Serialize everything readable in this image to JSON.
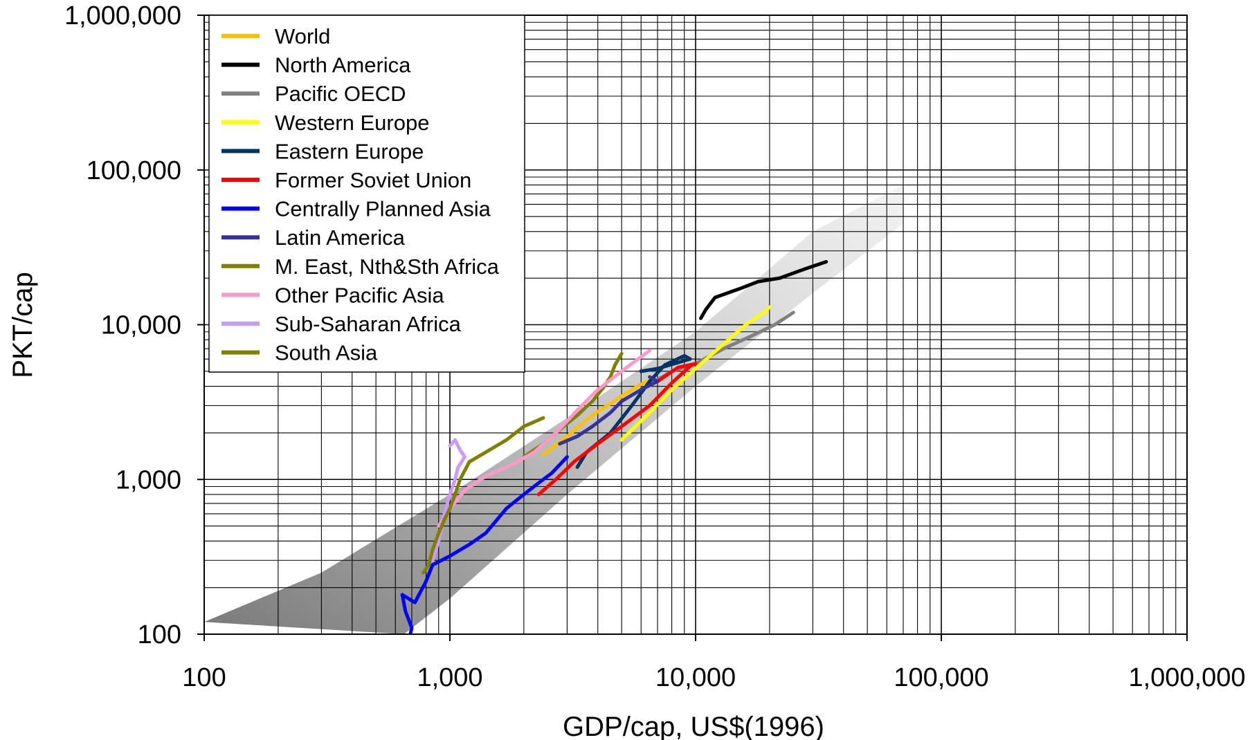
{
  "chart_data": {
    "type": "line",
    "xlabel": "GDP/cap, US$(1996)",
    "ylabel": "PKT/cap",
    "xscale": "log",
    "yscale": "log",
    "xlim": [
      100,
      1000000
    ],
    "ylim": [
      100,
      1000000
    ],
    "grid": true,
    "legend_position": "top-left",
    "xticks": [
      {
        "v": 100,
        "label": "100"
      },
      {
        "v": 1000,
        "label": "1,000"
      },
      {
        "v": 10000,
        "label": "10,000"
      },
      {
        "v": 100000,
        "label": "100,000"
      },
      {
        "v": 1000000,
        "label": "1,000,000"
      }
    ],
    "yticks": [
      {
        "v": 100,
        "label": "100"
      },
      {
        "v": 1000,
        "label": "1,000"
      },
      {
        "v": 10000,
        "label": "10,000"
      },
      {
        "v": 100000,
        "label": "100,000"
      },
      {
        "v": 1000000,
        "label": "1,000,000"
      }
    ],
    "band": {
      "lower": [
        [
          650,
          100
        ],
        [
          1000,
          170
        ],
        [
          3000,
          800
        ],
        [
          10000,
          4000
        ],
        [
          30000,
          16000
        ],
        [
          70000,
          45000
        ]
      ],
      "upper": [
        [
          100,
          120
        ],
        [
          300,
          250
        ],
        [
          1000,
          800
        ],
        [
          3000,
          2500
        ],
        [
          10000,
          9000
        ],
        [
          30000,
          40000
        ],
        [
          70000,
          80000
        ]
      ],
      "color_light": "#f0f0f0",
      "color_dark": "#7a7a7a"
    },
    "series": [
      {
        "name": "World",
        "color": "#ffc000",
        "points": [
          [
            2400,
            1450
          ],
          [
            3000,
            1900
          ],
          [
            3800,
            2600
          ],
          [
            4800,
            3300
          ],
          [
            5800,
            4000
          ],
          [
            6500,
            4400
          ]
        ]
      },
      {
        "name": "North America",
        "color": "#000000",
        "points": [
          [
            10500,
            11000
          ],
          [
            11000,
            12500
          ],
          [
            12000,
            15000
          ],
          [
            15000,
            17000
          ],
          [
            18000,
            19000
          ],
          [
            22000,
            20000
          ],
          [
            28000,
            23000
          ],
          [
            34000,
            25500
          ]
        ]
      },
      {
        "name": "Pacific OECD",
        "color": "#808080",
        "points": [
          [
            6000,
            3800
          ],
          [
            8000,
            5000
          ],
          [
            10000,
            5600
          ],
          [
            13000,
            7000
          ],
          [
            17000,
            8500
          ],
          [
            21000,
            10000
          ],
          [
            25000,
            12000
          ]
        ]
      },
      {
        "name": "Western Europe",
        "color": "#ffff00",
        "points": [
          [
            5000,
            1800
          ],
          [
            6500,
            2700
          ],
          [
            8000,
            3800
          ],
          [
            10000,
            5200
          ],
          [
            13000,
            7500
          ],
          [
            16000,
            10000
          ],
          [
            19000,
            12000
          ],
          [
            20000,
            13000
          ]
        ]
      },
      {
        "name": "Eastern Europe",
        "color": "#003366",
        "points": [
          [
            3300,
            1200
          ],
          [
            3600,
            1500
          ],
          [
            4500,
            2000
          ],
          [
            5500,
            3000
          ],
          [
            6500,
            4300
          ],
          [
            7500,
            5500
          ],
          [
            9000,
            6300
          ],
          [
            9500,
            6000
          ],
          [
            7000,
            5200
          ],
          [
            6000,
            5000
          ]
        ]
      },
      {
        "name": "Former Soviet Union",
        "color": "#ff0000",
        "points": [
          [
            2300,
            800
          ],
          [
            2700,
            1000
          ],
          [
            3200,
            1300
          ],
          [
            4000,
            1700
          ],
          [
            5000,
            2200
          ],
          [
            6500,
            3000
          ],
          [
            8000,
            4200
          ],
          [
            9500,
            5400
          ],
          [
            10000,
            5600
          ],
          [
            8500,
            5300
          ],
          [
            7000,
            4300
          ]
        ]
      },
      {
        "name": "Centrally Planned Asia",
        "color": "#0000ff",
        "points": [
          [
            680,
            90
          ],
          [
            700,
            110
          ],
          [
            660,
            140
          ],
          [
            640,
            180
          ],
          [
            720,
            160
          ],
          [
            800,
            220
          ],
          [
            850,
            280
          ],
          [
            1000,
            320
          ],
          [
            1200,
            380
          ],
          [
            1400,
            450
          ],
          [
            1700,
            650
          ],
          [
            2000,
            800
          ],
          [
            2300,
            950
          ],
          [
            2600,
            1100
          ],
          [
            3000,
            1400
          ]
        ]
      },
      {
        "name": "Latin America",
        "color": "#333399",
        "points": [
          [
            2800,
            1700
          ],
          [
            3300,
            1900
          ],
          [
            3800,
            2200
          ],
          [
            4500,
            2700
          ],
          [
            5000,
            3200
          ],
          [
            6000,
            3800
          ],
          [
            7000,
            4300
          ],
          [
            6500,
            4600
          ]
        ]
      },
      {
        "name": "M. East, Nth&Sth Africa",
        "color": "#808000",
        "points": [
          [
            2000,
            1400
          ],
          [
            2400,
            1700
          ],
          [
            2800,
            2100
          ],
          [
            3300,
            2600
          ],
          [
            3800,
            3200
          ],
          [
            4200,
            3900
          ],
          [
            4500,
            4600
          ],
          [
            4700,
            5500
          ],
          [
            5000,
            6500
          ]
        ]
      },
      {
        "name": "Other Pacific Asia",
        "color": "#ff99cc",
        "points": [
          [
            900,
            500
          ],
          [
            1000,
            650
          ],
          [
            1150,
            850
          ],
          [
            1400,
            1050
          ],
          [
            1800,
            1250
          ],
          [
            2200,
            1500
          ],
          [
            2700,
            2000
          ],
          [
            3300,
            2800
          ],
          [
            4000,
            3800
          ],
          [
            5000,
            5000
          ],
          [
            6000,
            6200
          ],
          [
            6500,
            6800
          ]
        ]
      },
      {
        "name": "Sub-Saharan Africa",
        "color": "#cc99ff",
        "points": [
          [
            1000,
            1650
          ],
          [
            1050,
            1800
          ],
          [
            1100,
            1550
          ],
          [
            1150,
            1400
          ],
          [
            1080,
            1200
          ],
          [
            1050,
            1000
          ],
          [
            1000,
            800
          ],
          [
            950,
            600
          ],
          [
            900,
            400
          ],
          [
            850,
            300
          ]
        ]
      },
      {
        "name": "South Asia",
        "color": "#808000",
        "points": [
          [
            780,
            250
          ],
          [
            820,
            280
          ],
          [
            850,
            350
          ],
          [
            900,
            450
          ],
          [
            950,
            550
          ],
          [
            1000,
            650
          ],
          [
            1050,
            800
          ],
          [
            1100,
            1000
          ],
          [
            1200,
            1300
          ],
          [
            1400,
            1500
          ],
          [
            1700,
            1800
          ],
          [
            2000,
            2200
          ],
          [
            2400,
            2500
          ]
        ]
      }
    ]
  }
}
